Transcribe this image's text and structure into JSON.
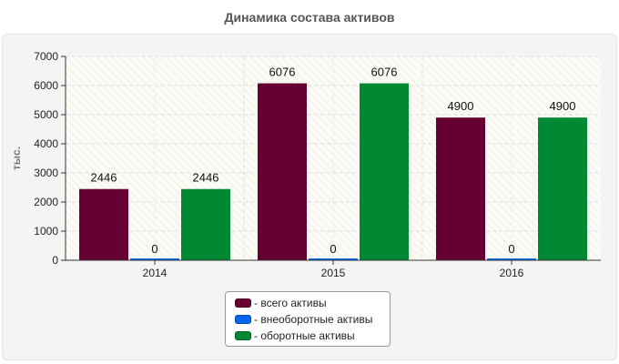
{
  "chart_data": {
    "type": "bar",
    "title": "Динамика состава активов",
    "xlabel": "",
    "ylabel": "тыс.",
    "categories": [
      "2014",
      "2015",
      "2016"
    ],
    "ylim": [
      0,
      7000
    ],
    "yticks": [
      "0",
      "1000",
      "2000",
      "3000",
      "4000",
      "5000",
      "6000",
      "7000"
    ],
    "series": [
      {
        "name": "- всего активы",
        "color": "#660033",
        "values": [
          2446,
          6076,
          4900
        ],
        "labels": [
          "2446",
          "6076",
          "4900"
        ]
      },
      {
        "name": "- внеоборотные активы",
        "color": "#0066ee",
        "values": [
          0,
          0,
          0
        ],
        "labels": [
          "0",
          "0",
          "0"
        ]
      },
      {
        "name": "- оборотные активы",
        "color": "#008833",
        "values": [
          2446,
          6076,
          4900
        ],
        "labels": [
          "2446",
          "6076",
          "4900"
        ]
      }
    ],
    "legend_position": "bottom-center",
    "grid": true
  }
}
